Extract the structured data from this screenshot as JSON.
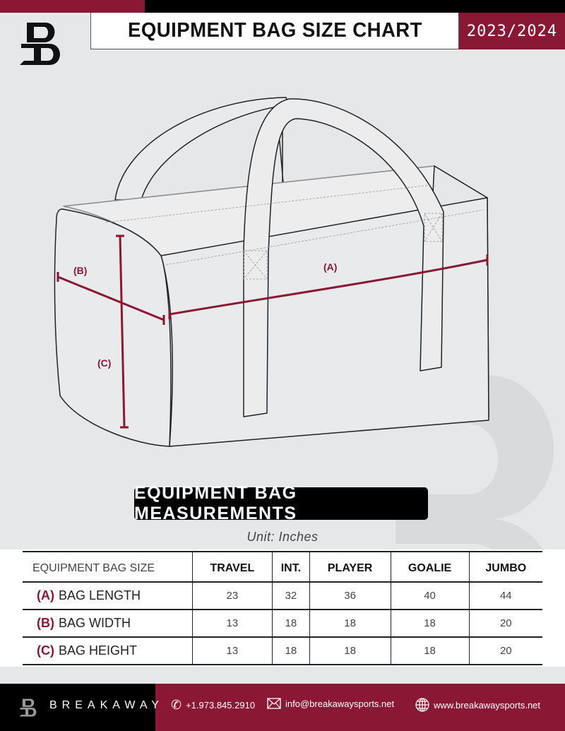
{
  "header": {
    "title": "EQUIPMENT BAG SIZE CHART",
    "season": "2023/2024",
    "logo_text": "B"
  },
  "diagram": {
    "label_a": "(A)",
    "label_b": "(B)",
    "label_c": "(C)"
  },
  "section_title": "EQUIPMENT BAG MEASUREMENTS",
  "unit": "Unit: Inches",
  "table": {
    "header": [
      "EQUIPMENT BAG SIZE",
      "TRAVEL",
      "INT.",
      "PLAYER",
      "GOALIE",
      "JUMBO"
    ],
    "rows": [
      {
        "key": "(A)",
        "label": "BAG LENGTH",
        "values": [
          "23",
          "32",
          "36",
          "40",
          "44"
        ]
      },
      {
        "key": "(B)",
        "label": "BAG WIDTH",
        "values": [
          "13",
          "18",
          "18",
          "18",
          "20"
        ]
      },
      {
        "key": "(C)",
        "label": "BAG HEIGHT",
        "values": [
          "13",
          "18",
          "18",
          "18",
          "20"
        ]
      }
    ]
  },
  "footer": {
    "brand": "BREAKAWAY",
    "phone": "+1.973.845.2910",
    "email": "info@breakawaysports.net",
    "website": "www.breakawaysports.net"
  },
  "colors": {
    "accent": "#8a1734",
    "background": "#e6e7e8"
  }
}
